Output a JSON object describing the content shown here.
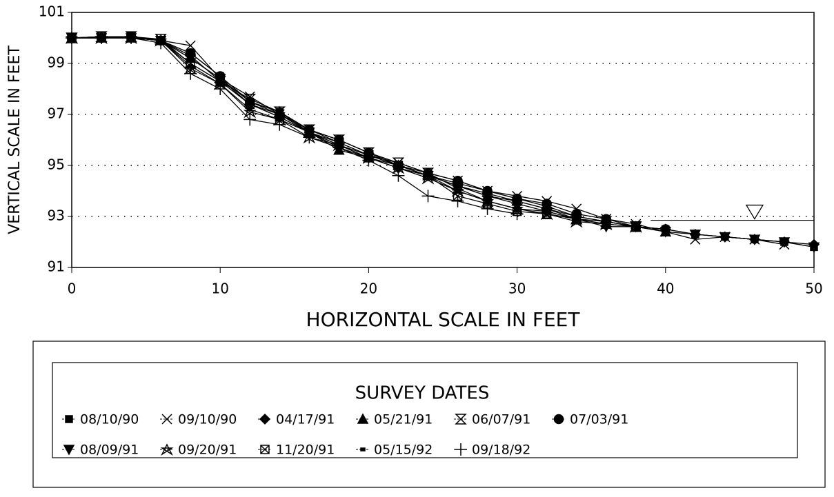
{
  "chart_data": {
    "type": "line",
    "xlabel": "HORIZONTAL SCALE IN FEET",
    "ylabel": "VERTICAL SCALE IN FEET",
    "x": [
      0,
      2,
      4,
      6,
      8,
      10,
      12,
      14,
      16,
      18,
      20,
      22,
      24,
      26,
      28,
      30,
      32,
      34,
      36,
      38,
      40,
      42,
      44,
      46,
      48,
      50
    ],
    "xlim": [
      0,
      50
    ],
    "xticks": [
      0,
      10,
      20,
      30,
      40,
      50
    ],
    "ylim": [
      91,
      101
    ],
    "yticks": [
      91,
      93,
      95,
      97,
      99,
      101
    ],
    "grid": true,
    "legend_title": "SURVEY DATES",
    "reference_line": {
      "y": 92.85,
      "x": [
        39,
        50
      ],
      "marker_x": 46
    },
    "series": [
      {
        "name": "08/10/90",
        "color": "#000",
        "marker": "square",
        "values": [
          100,
          100,
          100.05,
          99.9,
          99.4,
          98.5,
          97.5,
          97.1,
          96.4,
          96.0,
          95.5,
          95.0,
          94.6,
          94.3,
          94.0,
          93.7,
          93.4,
          93.0,
          92.8,
          92.6,
          92.5,
          92.3,
          92.2,
          92.1,
          92.0,
          91.8
        ]
      },
      {
        "name": "09/10/90",
        "color": "#000",
        "marker": "x",
        "values": [
          100,
          100.05,
          100.05,
          99.9,
          99.7,
          98.4,
          97.7,
          97.0,
          96.4,
          95.9,
          95.4,
          95.1,
          94.7,
          94.4,
          94.0,
          93.8,
          93.6,
          93.3,
          92.9,
          92.7,
          92.4,
          92.1,
          92.2,
          92.1,
          91.9,
          null
        ]
      },
      {
        "name": "04/17/91",
        "color": "#000",
        "marker": "diamond",
        "values": [
          100,
          100,
          100,
          99.9,
          99.3,
          98.3,
          97.4,
          97.0,
          96.3,
          95.8,
          95.3,
          94.9,
          94.6,
          94.2,
          93.9,
          93.6,
          93.3,
          93.0,
          92.8,
          92.6,
          92.5,
          92.3,
          92.2,
          92.1,
          92.0,
          91.9
        ]
      },
      {
        "name": "05/21/91",
        "color": "#000",
        "marker": "triangle-up",
        "values": [
          100,
          100,
          100,
          99.9,
          99.2,
          98.4,
          97.5,
          97.1,
          96.3,
          95.6,
          95.3,
          95.0,
          94.6,
          94.2,
          93.8,
          93.6,
          93.3,
          92.9,
          92.7,
          92.6,
          92.4,
          null,
          null,
          null,
          null,
          null
        ]
      },
      {
        "name": "06/07/91",
        "color": "#000",
        "marker": "hourglass",
        "values": [
          100,
          100.05,
          100.05,
          99.95,
          99.0,
          98.3,
          97.6,
          97.1,
          96.4,
          96.0,
          95.5,
          95.1,
          94.7,
          94.1,
          93.6,
          93.3,
          93.1,
          92.9,
          92.8,
          92.6,
          null,
          null,
          null,
          null,
          null,
          null
        ]
      },
      {
        "name": "07/03/91",
        "color": "#000",
        "marker": "circle",
        "values": [
          100,
          100,
          100.05,
          99.9,
          99.4,
          98.5,
          97.5,
          97.0,
          96.4,
          96.0,
          95.5,
          95.0,
          94.7,
          94.4,
          94.0,
          93.7,
          93.5,
          93.1,
          92.9,
          92.6,
          92.5,
          null,
          null,
          null,
          null,
          null
        ]
      },
      {
        "name": "08/09/91",
        "color": "#000",
        "marker": "triangle-down",
        "values": [
          100,
          100,
          100,
          99.9,
          99.2,
          98.4,
          97.4,
          96.9,
          96.3,
          95.7,
          95.3,
          94.9,
          94.6,
          94.2,
          93.8,
          93.5,
          93.2,
          92.9,
          92.6,
          92.6,
          92.4,
          92.3,
          92.2,
          92.1,
          92.0,
          91.8
        ]
      },
      {
        "name": "09/20/91",
        "color": "#000",
        "marker": "star",
        "values": [
          100,
          100,
          100,
          99.9,
          98.8,
          98.2,
          97.1,
          96.8,
          96.1,
          95.8,
          95.3,
          94.9,
          94.5,
          94.0,
          93.6,
          93.3,
          93.1,
          92.8,
          92.7,
          92.6,
          null,
          null,
          null,
          null,
          null,
          null
        ]
      },
      {
        "name": "11/20/91",
        "color": "#000",
        "marker": "boxed-x",
        "values": [
          100,
          100.05,
          100.05,
          99.9,
          99.0,
          98.3,
          97.4,
          96.9,
          96.3,
          95.8,
          95.4,
          95.0,
          94.6,
          93.8,
          93.5,
          93.2,
          93.1,
          92.9,
          null,
          null,
          null,
          null,
          null,
          null,
          null,
          null
        ]
      },
      {
        "name": "05/15/92",
        "color": "#000",
        "marker": "dot",
        "values": [
          100,
          100,
          100,
          99.9,
          98.9,
          98.2,
          97.2,
          96.8,
          96.3,
          95.9,
          95.4,
          95.0,
          94.6,
          94.0,
          93.6,
          93.3,
          93.2,
          92.9,
          null,
          null,
          null,
          null,
          null,
          null,
          null,
          null
        ]
      },
      {
        "name": "09/18/92",
        "color": "#000",
        "marker": "plus",
        "values": [
          100,
          100,
          100,
          99.8,
          98.6,
          98.0,
          96.8,
          96.6,
          96.1,
          95.7,
          95.2,
          94.6,
          93.8,
          93.6,
          93.3,
          93.1,
          null,
          null,
          null,
          null,
          null,
          null,
          null,
          null,
          null,
          null
        ]
      }
    ]
  }
}
